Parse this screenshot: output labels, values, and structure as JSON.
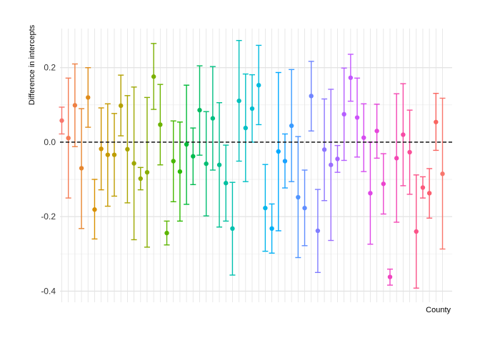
{
  "chart_data": {
    "type": "scatter",
    "title": "",
    "xlabel": "County",
    "ylabel": "Difference in intercepts",
    "ylim": [
      -0.43,
      0.305
    ],
    "yticks": [
      -0.4,
      -0.2,
      0.0,
      0.2
    ],
    "ytick_labels": [
      "-0.4",
      "-0.2",
      "0.0",
      "0.2"
    ],
    "grid": true,
    "legend": "none",
    "reference_line": {
      "y": 0,
      "style": "dashed",
      "color": "#000000"
    },
    "error_bars": true,
    "points": [
      {
        "y": 0.058,
        "lo": 0.022,
        "hi": 0.094,
        "color": "#F8766D"
      },
      {
        "y": 0.011,
        "lo": -0.15,
        "hi": 0.172,
        "color": "#F47C56"
      },
      {
        "y": 0.099,
        "lo": -0.012,
        "hi": 0.21,
        "color": "#EE8043"
      },
      {
        "y": -0.07,
        "lo": -0.232,
        "hi": 0.09,
        "color": "#E6862F"
      },
      {
        "y": 0.12,
        "lo": 0.04,
        "hi": 0.2,
        "color": "#DF8B1A"
      },
      {
        "y": -0.181,
        "lo": -0.26,
        "hi": -0.1,
        "color": "#D89000"
      },
      {
        "y": -0.018,
        "lo": -0.128,
        "hi": 0.092,
        "color": "#CF9400"
      },
      {
        "y": -0.034,
        "lo": -0.172,
        "hi": 0.103,
        "color": "#C69900"
      },
      {
        "y": -0.034,
        "lo": -0.145,
        "hi": 0.077,
        "color": "#BD9D00"
      },
      {
        "y": 0.098,
        "lo": 0.017,
        "hi": 0.18,
        "color": "#B3A000"
      },
      {
        "y": -0.019,
        "lo": -0.163,
        "hi": 0.125,
        "color": "#A9A400"
      },
      {
        "y": -0.057,
        "lo": -0.262,
        "hi": 0.148,
        "color": "#9EA700"
      },
      {
        "y": -0.098,
        "lo": -0.128,
        "hi": -0.068,
        "color": "#93AA00"
      },
      {
        "y": -0.081,
        "lo": -0.282,
        "hi": 0.12,
        "color": "#87AD00"
      },
      {
        "y": 0.176,
        "lo": 0.088,
        "hi": 0.265,
        "color": "#7AB000"
      },
      {
        "y": 0.047,
        "lo": -0.061,
        "hi": 0.155,
        "color": "#6CB300"
      },
      {
        "y": -0.244,
        "lo": -0.276,
        "hi": -0.212,
        "color": "#5CB500"
      },
      {
        "y": -0.051,
        "lo": -0.16,
        "hi": 0.057,
        "color": "#48B700"
      },
      {
        "y": -0.079,
        "lo": -0.212,
        "hi": 0.054,
        "color": "#2BB900"
      },
      {
        "y": -0.006,
        "lo": -0.167,
        "hi": 0.153,
        "color": "#00BA38"
      },
      {
        "y": -0.038,
        "lo": -0.114,
        "hi": 0.038,
        "color": "#00BB4E"
      },
      {
        "y": 0.086,
        "lo": -0.035,
        "hi": 0.205,
        "color": "#00BC61"
      },
      {
        "y": -0.058,
        "lo": -0.198,
        "hi": 0.082,
        "color": "#00BD72"
      },
      {
        "y": 0.064,
        "lo": -0.075,
        "hi": 0.203,
        "color": "#00BE82"
      },
      {
        "y": -0.061,
        "lo": -0.228,
        "hi": 0.106,
        "color": "#00BF91"
      },
      {
        "y": -0.11,
        "lo": -0.212,
        "hi": -0.008,
        "color": "#00C0A0"
      },
      {
        "y": -0.232,
        "lo": -0.357,
        "hi": -0.108,
        "color": "#00C0AE"
      },
      {
        "y": 0.111,
        "lo": -0.051,
        "hi": 0.273,
        "color": "#00C0BB"
      },
      {
        "y": 0.038,
        "lo": -0.106,
        "hi": 0.183,
        "color": "#00BFC4"
      },
      {
        "y": 0.09,
        "lo": 0.0,
        "hi": 0.181,
        "color": "#00BDD0"
      },
      {
        "y": 0.153,
        "lo": 0.047,
        "hi": 0.26,
        "color": "#00BAE0"
      },
      {
        "y": -0.177,
        "lo": -0.293,
        "hi": -0.06,
        "color": "#00B6EB"
      },
      {
        "y": -0.232,
        "lo": -0.298,
        "hi": -0.166,
        "color": "#00B0F6"
      },
      {
        "y": -0.025,
        "lo": -0.238,
        "hi": 0.187,
        "color": "#00A9FF"
      },
      {
        "y": -0.051,
        "lo": -0.123,
        "hi": 0.022,
        "color": "#19A2FF"
      },
      {
        "y": 0.044,
        "lo": -0.106,
        "hi": 0.195,
        "color": "#3A9BFF"
      },
      {
        "y": -0.148,
        "lo": -0.31,
        "hi": 0.015,
        "color": "#4F94FF"
      },
      {
        "y": -0.177,
        "lo": -0.278,
        "hi": -0.075,
        "color": "#608DFF"
      },
      {
        "y": 0.124,
        "lo": 0.03,
        "hi": 0.217,
        "color": "#7085FF"
      },
      {
        "y": -0.238,
        "lo": -0.35,
        "hi": -0.127,
        "color": "#7F7DFF"
      },
      {
        "y": -0.02,
        "lo": -0.157,
        "hi": 0.116,
        "color": "#8D76FF"
      },
      {
        "y": -0.061,
        "lo": -0.264,
        "hi": 0.142,
        "color": "#9B6EFF"
      },
      {
        "y": -0.045,
        "lo": -0.081,
        "hi": -0.009,
        "color": "#A866FF"
      },
      {
        "y": 0.075,
        "lo": -0.049,
        "hi": 0.199,
        "color": "#B55EFF"
      },
      {
        "y": 0.173,
        "lo": 0.11,
        "hi": 0.236,
        "color": "#C257FF"
      },
      {
        "y": 0.066,
        "lo": -0.04,
        "hi": 0.172,
        "color": "#CD51FA"
      },
      {
        "y": 0.012,
        "lo": -0.079,
        "hi": 0.103,
        "color": "#D64CF0"
      },
      {
        "y": -0.137,
        "lo": -0.274,
        "hi": 0.0,
        "color": "#DE47E5"
      },
      {
        "y": 0.03,
        "lo": -0.043,
        "hi": 0.102,
        "color": "#E545DA"
      },
      {
        "y": -0.112,
        "lo": -0.193,
        "hi": -0.031,
        "color": "#EB44CD"
      },
      {
        "y": -0.362,
        "lo": -0.384,
        "hi": -0.341,
        "color": "#F045C0"
      },
      {
        "y": -0.043,
        "lo": -0.215,
        "hi": 0.13,
        "color": "#F447B3"
      },
      {
        "y": 0.02,
        "lo": -0.117,
        "hi": 0.157,
        "color": "#F74AA5"
      },
      {
        "y": -0.027,
        "lo": -0.14,
        "hi": 0.086,
        "color": "#FA4E97"
      },
      {
        "y": -0.24,
        "lo": -0.392,
        "hi": -0.088,
        "color": "#FB5389"
      },
      {
        "y": -0.122,
        "lo": -0.15,
        "hi": -0.093,
        "color": "#FC597C"
      },
      {
        "y": -0.137,
        "lo": -0.204,
        "hi": -0.071,
        "color": "#FB5F6F"
      },
      {
        "y": 0.054,
        "lo": -0.022,
        "hi": 0.131,
        "color": "#F96560"
      },
      {
        "y": -0.085,
        "lo": -0.287,
        "hi": 0.118,
        "color": "#F8766D"
      }
    ]
  }
}
